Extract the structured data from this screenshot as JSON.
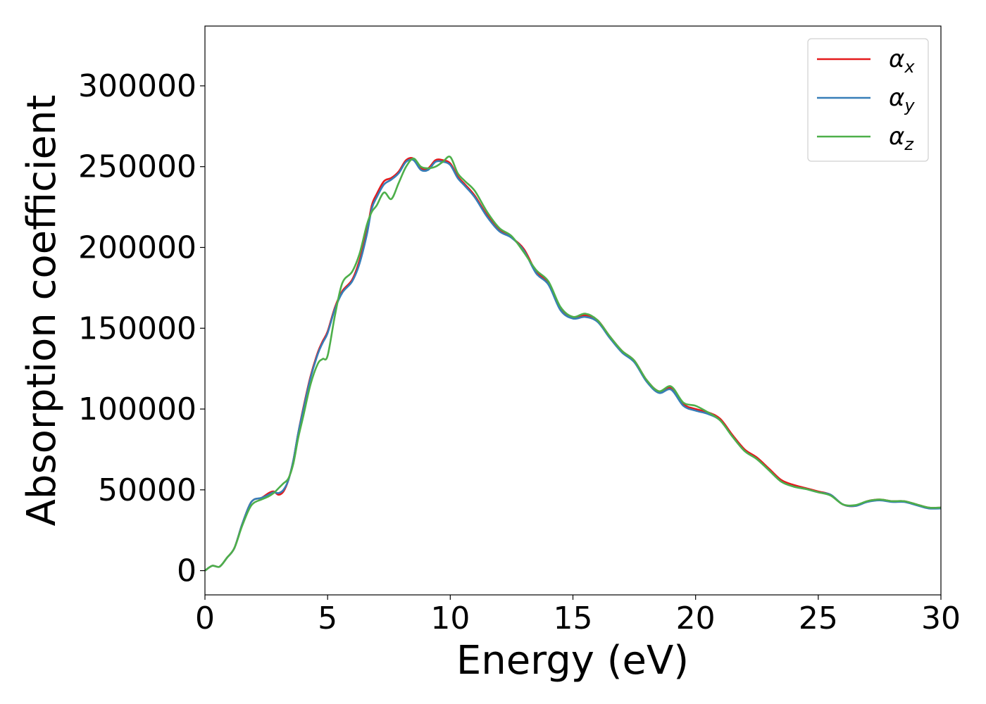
{
  "chart_data": {
    "type": "line",
    "xlabel": "Energy (eV)",
    "ylabel": "Absorption coefficient",
    "xlim": [
      0,
      30
    ],
    "ylim": [
      -15000,
      337000
    ],
    "xticks": [
      0,
      5,
      10,
      15,
      20,
      25,
      30
    ],
    "yticks": [
      0,
      50000,
      100000,
      150000,
      200000,
      250000,
      300000
    ],
    "grid": false,
    "legend_position": "top-right",
    "series": [
      {
        "name": "α",
        "subscript": "x",
        "color": "#e41a1c",
        "x": [
          0,
          0.3,
          0.6,
          0.9,
          1.2,
          1.5,
          1.8,
          2.0,
          2.3,
          2.6,
          2.8,
          3.0,
          3.2,
          3.4,
          3.6,
          3.8,
          4.0,
          4.3,
          4.6,
          4.8,
          5.0,
          5.3,
          5.6,
          6.0,
          6.3,
          6.6,
          6.8,
          7.0,
          7.3,
          7.6,
          7.9,
          8.2,
          8.5,
          8.8,
          9.1,
          9.4,
          9.7,
          10.0,
          10.3,
          10.6,
          11.0,
          11.5,
          12.0,
          12.5,
          13.0,
          13.5,
          14.0,
          14.5,
          15.0,
          15.5,
          16.0,
          16.5,
          17.0,
          17.5,
          18.0,
          18.5,
          19.0,
          19.5,
          20.0,
          20.5,
          21.0,
          21.5,
          22.0,
          22.5,
          23.0,
          23.5,
          24.0,
          24.5,
          25.0,
          25.5,
          26.0,
          26.5,
          27.0,
          27.5,
          28.0,
          28.5,
          29.0,
          29.5,
          30.0
        ],
        "y": [
          0,
          3000,
          2500,
          8000,
          14000,
          28000,
          40000,
          44000,
          45000,
          48000,
          49000,
          47000,
          49000,
          56000,
          68000,
          85000,
          100000,
          120000,
          135000,
          142000,
          148000,
          163000,
          173000,
          180000,
          192000,
          210000,
          226000,
          233000,
          241000,
          243000,
          247000,
          254000,
          255000,
          249000,
          249000,
          254000,
          254000,
          252000,
          244000,
          239000,
          232000,
          220000,
          211000,
          206000,
          199000,
          185000,
          178000,
          162000,
          157000,
          158000,
          155000,
          145000,
          136000,
          130000,
          118000,
          111000,
          113000,
          103000,
          100000,
          98000,
          94000,
          84000,
          75000,
          70000,
          63000,
          56000,
          53000,
          51000,
          49000,
          47000,
          41000,
          40000,
          43000,
          44000,
          43000,
          43000,
          41000,
          39000,
          39000
        ]
      },
      {
        "name": "α",
        "subscript": "y",
        "color": "#377eb8",
        "x": [
          0,
          0.3,
          0.6,
          0.9,
          1.2,
          1.5,
          1.8,
          2.0,
          2.3,
          2.6,
          2.8,
          3.0,
          3.2,
          3.4,
          3.6,
          3.8,
          4.0,
          4.3,
          4.6,
          4.8,
          5.0,
          5.3,
          5.6,
          6.0,
          6.3,
          6.6,
          6.8,
          7.0,
          7.3,
          7.6,
          7.9,
          8.2,
          8.5,
          8.8,
          9.1,
          9.4,
          9.7,
          10.0,
          10.3,
          10.6,
          11.0,
          11.5,
          12.0,
          12.5,
          13.0,
          13.5,
          14.0,
          14.5,
          15.0,
          15.5,
          16.0,
          16.5,
          17.0,
          17.5,
          18.0,
          18.5,
          19.0,
          19.5,
          20.0,
          20.5,
          21.0,
          21.5,
          22.0,
          22.5,
          23.0,
          23.5,
          24.0,
          24.5,
          25.0,
          25.5,
          26.0,
          26.5,
          27.0,
          27.5,
          28.0,
          28.5,
          29.0,
          29.5,
          30.0
        ],
        "y": [
          0,
          3000,
          2500,
          8000,
          14000,
          28000,
          40000,
          44000,
          45000,
          47000,
          48500,
          48000,
          50000,
          56000,
          68000,
          85000,
          99000,
          119000,
          134000,
          141000,
          147000,
          162000,
          172000,
          179000,
          190000,
          208000,
          224000,
          231000,
          239000,
          242000,
          246000,
          253000,
          254000,
          248000,
          248000,
          253000,
          253000,
          251000,
          243000,
          238000,
          231000,
          219000,
          210000,
          206000,
          198000,
          184000,
          177000,
          161000,
          156000,
          157000,
          154000,
          144000,
          135000,
          129000,
          117000,
          110000,
          112000,
          102000,
          99000,
          97000,
          93000,
          83000,
          74000,
          69000,
          62000,
          55000,
          52000,
          50500,
          48500,
          47000,
          41000,
          40000,
          42500,
          43500,
          42500,
          42500,
          40500,
          38500,
          38500
        ]
      },
      {
        "name": "α",
        "subscript": "z",
        "color": "#4daf4a",
        "x": [
          0,
          0.3,
          0.6,
          0.9,
          1.2,
          1.5,
          1.8,
          2.0,
          2.3,
          2.6,
          2.8,
          3.0,
          3.2,
          3.4,
          3.6,
          3.8,
          4.0,
          4.3,
          4.6,
          4.8,
          5.0,
          5.3,
          5.6,
          6.0,
          6.3,
          6.6,
          6.8,
          7.0,
          7.3,
          7.6,
          7.9,
          8.2,
          8.5,
          8.8,
          9.1,
          9.4,
          9.7,
          10.0,
          10.3,
          10.6,
          11.0,
          11.5,
          12.0,
          12.5,
          13.0,
          13.5,
          14.0,
          14.5,
          15.0,
          15.5,
          16.0,
          16.5,
          17.0,
          17.5,
          18.0,
          18.5,
          19.0,
          19.5,
          20.0,
          20.5,
          21.0,
          21.5,
          22.0,
          22.5,
          23.0,
          23.5,
          24.0,
          24.5,
          25.0,
          25.5,
          26.0,
          26.5,
          27.0,
          27.5,
          28.0,
          28.5,
          29.0,
          29.5,
          30.0
        ],
        "y": [
          0,
          3000,
          2500,
          8000,
          14000,
          27000,
          38000,
          42000,
          44000,
          46000,
          48000,
          51000,
          54000,
          57000,
          66000,
          82000,
          95000,
          115000,
          128000,
          131000,
          133000,
          158000,
          178000,
          185000,
          196000,
          214000,
          222000,
          226000,
          234000,
          230000,
          240000,
          250000,
          255000,
          250000,
          249000,
          250000,
          253000,
          256000,
          246000,
          241000,
          235000,
          222000,
          212000,
          207000,
          197000,
          186000,
          179000,
          163000,
          157000,
          159000,
          155000,
          145000,
          136000,
          130000,
          118000,
          111000,
          114000,
          104000,
          102000,
          98000,
          93000,
          83000,
          74000,
          69000,
          62000,
          55000,
          52000,
          50500,
          48500,
          46500,
          41000,
          40500,
          43000,
          44000,
          43000,
          43000,
          41000,
          39000,
          39000
        ]
      }
    ]
  }
}
